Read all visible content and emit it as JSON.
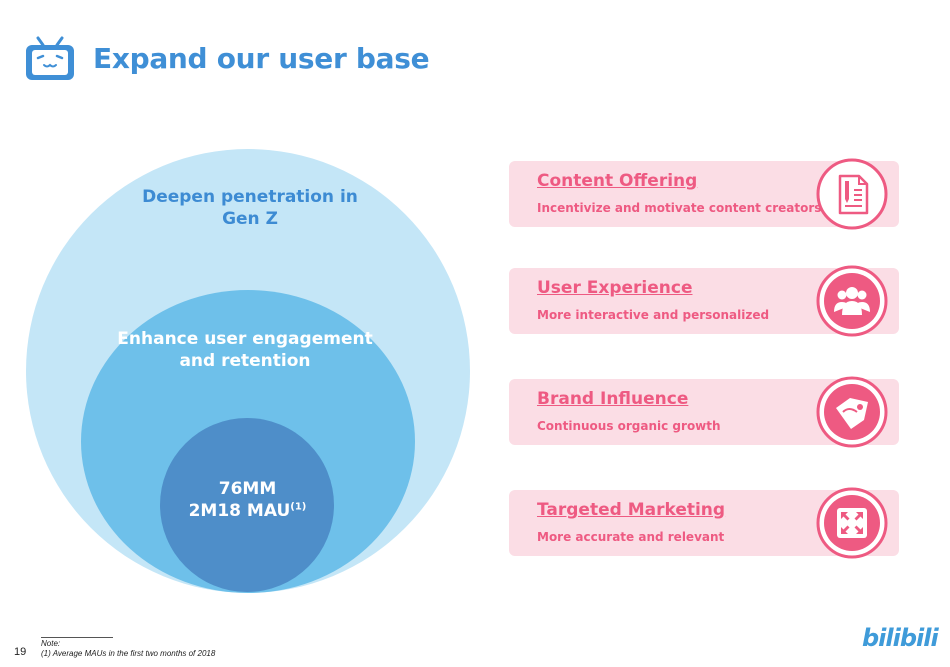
{
  "header": {
    "title": "Expand our user base",
    "logo_icon": "tv-mascot-icon"
  },
  "circles": {
    "outer_label": "Deepen penetration in Gen Z",
    "middle_label": "Enhance user engagement and retention",
    "inner_line1": "76MM",
    "inner_line2": "2M18 MAU",
    "inner_superscript": "(1)"
  },
  "cards": [
    {
      "title": "Content Offering",
      "description": "Incentivize and motivate content creators",
      "icon": "document-pen-icon"
    },
    {
      "title": "User Experience",
      "description": "More interactive and personalized",
      "icon": "users-group-icon"
    },
    {
      "title": "Brand Influence",
      "description": "Continuous organic growth",
      "icon": "tag-icon"
    },
    {
      "title": "Targeted Marketing",
      "description": "More accurate and relevant",
      "icon": "expand-arrows-icon"
    }
  ],
  "footer": {
    "page_number": "19",
    "note_label": "Note:",
    "note_text": "(1)    Average MAUs in the first two months of 2018",
    "brand": "bilibili"
  },
  "colors": {
    "title_blue": "#3f8fd6",
    "outer_circle": "#c4e6f7",
    "middle_circle": "#6ec0ea",
    "inner_circle": "#4e8ec9",
    "card_bg": "#fbdde5",
    "accent_pink": "#ee5a82"
  }
}
